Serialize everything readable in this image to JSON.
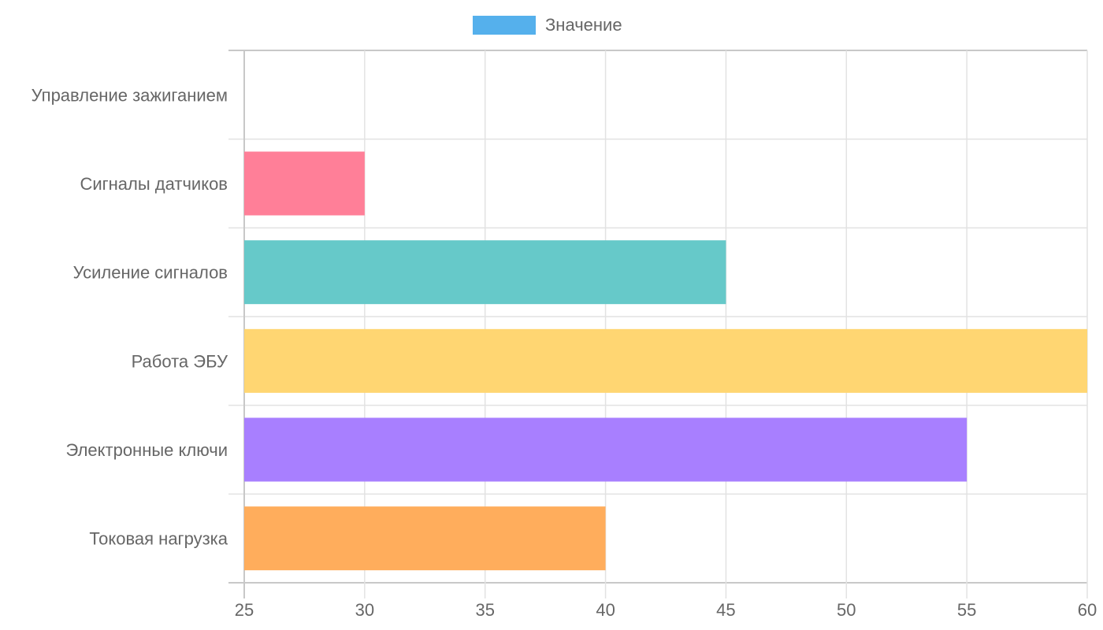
{
  "chart_data": {
    "type": "bar",
    "orientation": "horizontal",
    "title": "",
    "categories": [
      "Управление зажиганием",
      "Сигналы датчиков",
      "Усиление сигналов",
      "Работа ЭБУ",
      "Электронные ключи",
      "Токовая нагрузка"
    ],
    "series": [
      {
        "name": "Значение",
        "values": [
          25,
          30,
          45,
          60,
          55,
          40
        ]
      }
    ],
    "colors": [
      "#ff6384",
      "#ff7f98",
      "#66c9c9",
      "#ffd672",
      "#a87fff",
      "#ffad5c"
    ],
    "legend_color": "#55b0ec",
    "xlim": [
      25,
      60
    ],
    "x_ticks": [
      "25",
      "30",
      "35",
      "40",
      "45",
      "50",
      "55",
      "60"
    ],
    "xlabel": "",
    "ylabel": "",
    "grid": true,
    "legend_position": "top"
  }
}
